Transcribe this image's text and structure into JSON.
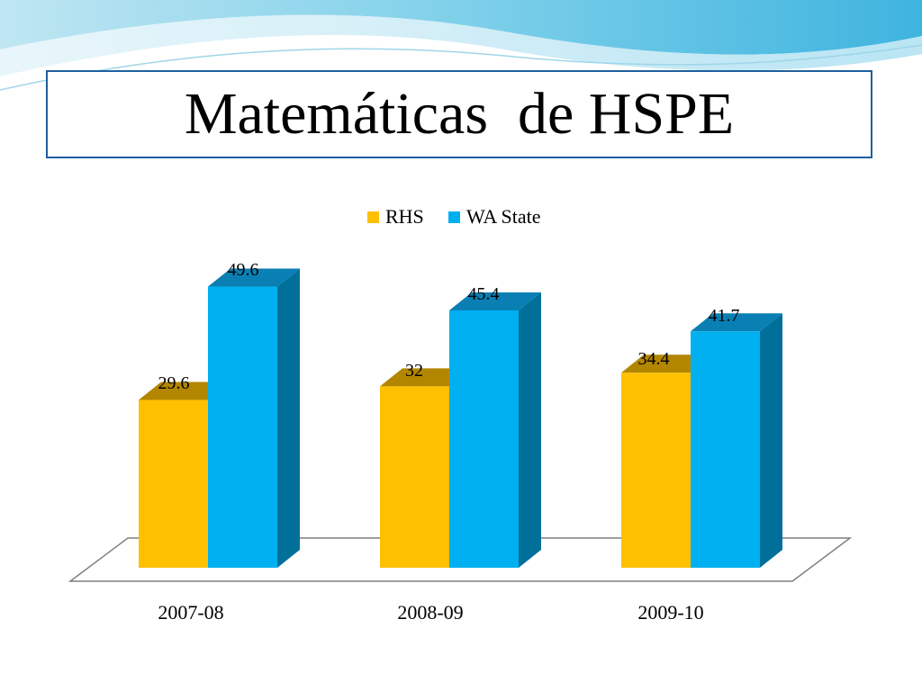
{
  "slide": {
    "title": "Matemáticas  de HSPE"
  },
  "colors": {
    "rhs_front": "#ffc000",
    "rhs_top": "#b38600",
    "rhs_side": "#bf9000",
    "wa_front": "#00b0f0",
    "wa_top": "#0a7fb3",
    "wa_side": "#006f99",
    "title_border": "#1f5f9e",
    "floor_line": "#7f7f7f"
  },
  "chart_data": {
    "type": "bar",
    "title": "",
    "xlabel": "",
    "ylabel": "",
    "categories": [
      "2007-08",
      "2008-09",
      "2009-10"
    ],
    "series": [
      {
        "name": "RHS",
        "values": [
          29.6,
          32,
          34.4
        ],
        "labels": [
          "29.6",
          "32",
          "34.4"
        ]
      },
      {
        "name": "WA State",
        "values": [
          49.6,
          45.4,
          41.7
        ],
        "labels": [
          "49.6",
          "45.4",
          "41.7"
        ]
      }
    ],
    "ylim": [
      0,
      60
    ],
    "grid": false,
    "legend": "top",
    "style": "3d-column"
  }
}
